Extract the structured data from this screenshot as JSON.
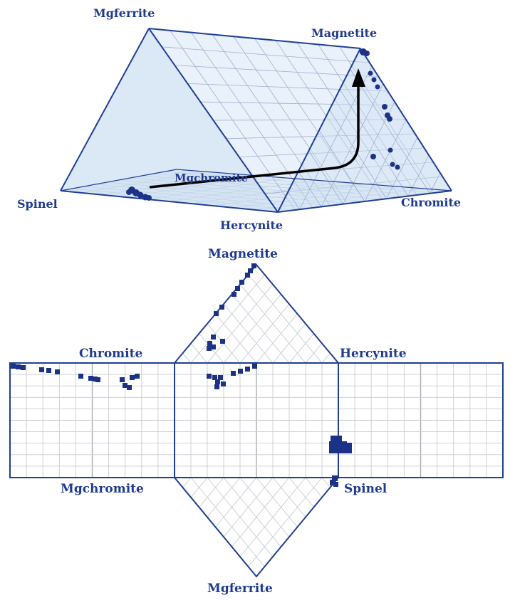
{
  "prism_labels": {
    "mgferrite": "Mgferrite",
    "magnetite": "Magnetite",
    "mgchromite": "Mgchromite",
    "spinel": "Spinel",
    "chromite": "Chromite",
    "hercynite": "Hercynite"
  },
  "net_labels": {
    "magnetite": "Magnetite",
    "chromite": "Chromite",
    "hercynite": "Hercynite",
    "mgchromite": "Mgchromite",
    "spinel": "Spinel",
    "mgferrite": "Mgferrite"
  },
  "colors": {
    "label": "#1f3a8f",
    "edge": "#1f3f93",
    "point": "#1c3287",
    "arrow": "#000000"
  }
}
